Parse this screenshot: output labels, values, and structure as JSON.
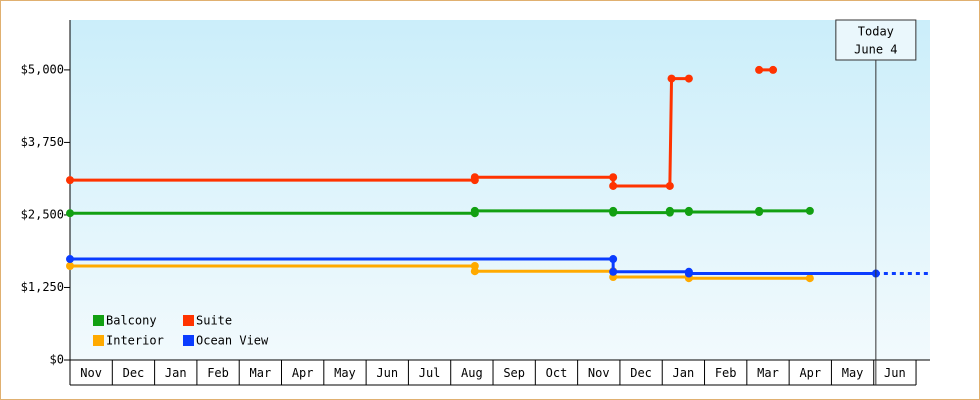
{
  "chart_data": {
    "type": "step-line",
    "ylim": [
      0,
      5860
    ],
    "yticks": [
      {
        "value": 0,
        "label": "$0"
      },
      {
        "value": 1250,
        "label": "$1,250"
      },
      {
        "value": 2500,
        "label": "$2,500"
      },
      {
        "value": 3750,
        "label": "$3,750"
      },
      {
        "value": 5000,
        "label": "$5,000"
      }
    ],
    "xlim": [
      0,
      20.33
    ],
    "x_categories": [
      "Nov",
      "Dec",
      "Jan",
      "Feb",
      "Mar",
      "Apr",
      "May",
      "Jun",
      "Jul",
      "Aug",
      "Sep",
      "Oct",
      "Nov",
      "Dec",
      "Jan",
      "Feb",
      "Mar",
      "Apr",
      "May",
      "Jun"
    ],
    "annotation": {
      "x": 19.05,
      "lines": [
        "Today",
        "June 4"
      ]
    },
    "legend_position": "lower left",
    "series": [
      {
        "name": "Balcony",
        "color": "#12a012",
        "x": [
          0,
          9.57,
          9.57,
          12.84,
          12.84,
          14.18,
          14.18,
          14.63,
          14.63,
          16.29,
          16.29,
          17.49
        ],
        "values": [
          2530,
          2530,
          2570,
          2570,
          2540,
          2540,
          2570,
          2570,
          2550,
          2550,
          2570,
          2570
        ]
      },
      {
        "name": "Suite",
        "color": "#ff3300",
        "x": [
          0,
          9.57,
          9.57,
          12.84,
          12.84,
          14.18,
          14.22,
          14.63,
          null,
          16.29,
          16.62
        ],
        "values": [
          3100,
          3100,
          3150,
          3150,
          3000,
          3000,
          4850,
          4850,
          null,
          5000,
          5000
        ]
      },
      {
        "name": "Interior",
        "color": "#ffaa00",
        "x": [
          0,
          9.57,
          9.57,
          12.84,
          12.84,
          14.63,
          14.63,
          17.49
        ],
        "values": [
          1620,
          1620,
          1530,
          1530,
          1430,
          1430,
          1410,
          1410
        ]
      },
      {
        "name": "Ocean View",
        "color": "#0a3cff",
        "projected": true,
        "x": [
          0,
          12.84,
          12.84,
          14.63,
          14.63,
          19.05
        ],
        "values": [
          1740,
          1740,
          1520,
          1520,
          1490,
          1490
        ]
      }
    ]
  }
}
